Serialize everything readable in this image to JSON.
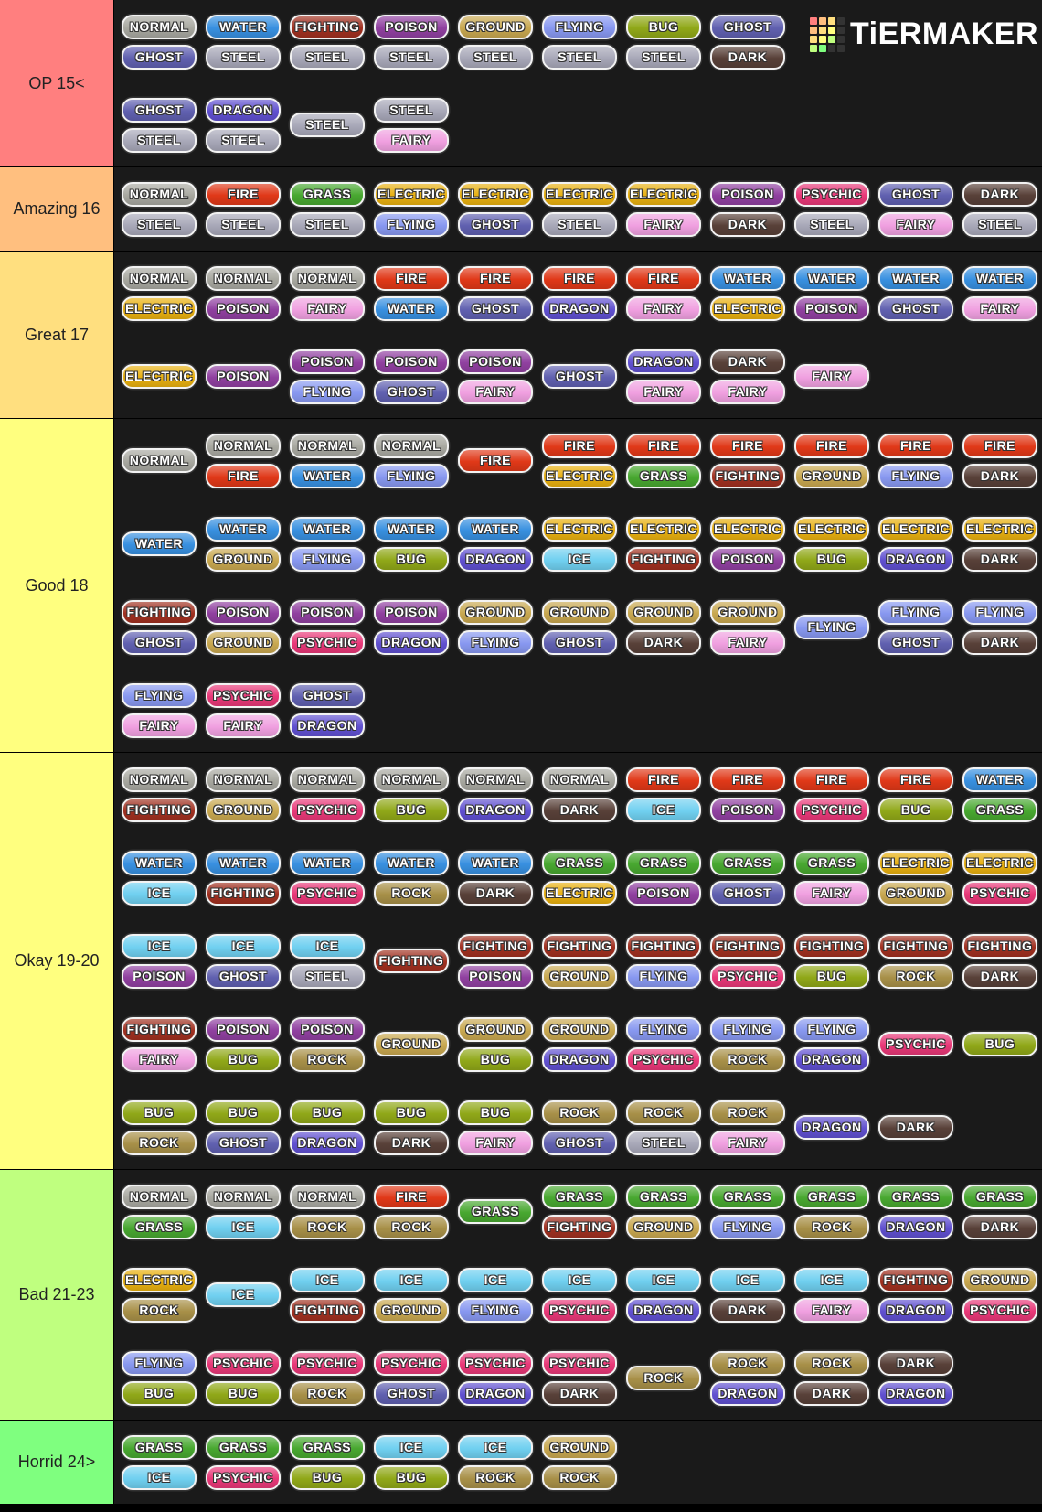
{
  "logo": "TiERMAKER",
  "type_colors": {
    "NORMAL": "#a8a8a0",
    "FIRE": "#e03818",
    "WATER": "#3890e0",
    "GRASS": "#48a830",
    "ELECTRIC": "#e8b010",
    "ICE": "#70d0f0",
    "FIGHTING": "#a03020",
    "POISON": "#9040a0",
    "GROUND": "#c8a850",
    "FLYING": "#8898f0",
    "PSYCHIC": "#e83878",
    "BUG": "#90a818",
    "ROCK": "#a89048",
    "GHOST": "#6060b0",
    "DRAGON": "#6050d0",
    "DARK": "#584038",
    "STEEL": "#a8a8b8",
    "FAIRY": "#f0a0e0"
  },
  "tiers": [
    {
      "label": "OP 15<",
      "color": "#ff7f7f",
      "rows": [
        [
          [
            "NORMAL",
            "GHOST"
          ],
          [
            "WATER",
            "STEEL"
          ],
          [
            "FIGHTING",
            "STEEL"
          ],
          [
            "POISON",
            "STEEL"
          ],
          [
            "GROUND",
            "STEEL"
          ],
          [
            "FLYING",
            "STEEL"
          ],
          [
            "BUG",
            "STEEL"
          ],
          [
            "GHOST",
            "DARK"
          ]
        ],
        [
          [
            "GHOST",
            "STEEL"
          ],
          [
            "DRAGON",
            "STEEL"
          ],
          [
            "STEEL"
          ],
          [
            "STEEL",
            "FAIRY"
          ]
        ]
      ]
    },
    {
      "label": "Amazing 16",
      "color": "#ffbf7f",
      "rows": [
        [
          [
            "NORMAL",
            "STEEL"
          ],
          [
            "FIRE",
            "STEEL"
          ],
          [
            "GRASS",
            "STEEL"
          ],
          [
            "ELECTRIC",
            "FLYING"
          ],
          [
            "ELECTRIC",
            "GHOST"
          ],
          [
            "ELECTRIC",
            "STEEL"
          ],
          [
            "ELECTRIC",
            "FAIRY"
          ],
          [
            "POISON",
            "DARK"
          ],
          [
            "PSYCHIC",
            "STEEL"
          ],
          [
            "GHOST",
            "FAIRY"
          ],
          [
            "DARK",
            "STEEL"
          ]
        ]
      ]
    },
    {
      "label": "Great 17",
      "color": "#ffdf7f",
      "rows": [
        [
          [
            "NORMAL",
            "ELECTRIC"
          ],
          [
            "NORMAL",
            "POISON"
          ],
          [
            "NORMAL",
            "FAIRY"
          ],
          [
            "FIRE",
            "WATER"
          ],
          [
            "FIRE",
            "GHOST"
          ],
          [
            "FIRE",
            "DRAGON"
          ],
          [
            "FIRE",
            "FAIRY"
          ],
          [
            "WATER",
            "ELECTRIC"
          ],
          [
            "WATER",
            "POISON"
          ],
          [
            "WATER",
            "GHOST"
          ],
          [
            "WATER",
            "FAIRY"
          ]
        ],
        [
          [
            "ELECTRIC"
          ],
          [
            "POISON"
          ],
          [
            "POISON",
            "FLYING"
          ],
          [
            "POISON",
            "GHOST"
          ],
          [
            "POISON",
            "FAIRY"
          ],
          [
            "GHOST"
          ],
          [
            "DRAGON",
            "FAIRY"
          ],
          [
            "DARK",
            "FAIRY"
          ],
          [
            "FAIRY"
          ]
        ]
      ]
    },
    {
      "label": "Good 18",
      "color": "#ffff7f",
      "rows": [
        [
          [
            "NORMAL"
          ],
          [
            "NORMAL",
            "FIRE"
          ],
          [
            "NORMAL",
            "WATER"
          ],
          [
            "NORMAL",
            "FLYING"
          ],
          [
            "FIRE"
          ],
          [
            "FIRE",
            "ELECTRIC"
          ],
          [
            "FIRE",
            "GRASS"
          ],
          [
            "FIRE",
            "FIGHTING"
          ],
          [
            "FIRE",
            "GROUND"
          ],
          [
            "FIRE",
            "FLYING"
          ],
          [
            "FIRE",
            "DARK"
          ]
        ],
        [
          [
            "WATER"
          ],
          [
            "WATER",
            "GROUND"
          ],
          [
            "WATER",
            "FLYING"
          ],
          [
            "WATER",
            "BUG"
          ],
          [
            "WATER",
            "DRAGON"
          ],
          [
            "ELECTRIC",
            "ICE"
          ],
          [
            "ELECTRIC",
            "FIGHTING"
          ],
          [
            "ELECTRIC",
            "POISON"
          ],
          [
            "ELECTRIC",
            "BUG"
          ],
          [
            "ELECTRIC",
            "DRAGON"
          ],
          [
            "ELECTRIC",
            "DARK"
          ]
        ],
        [
          [
            "FIGHTING",
            "GHOST"
          ],
          [
            "POISON",
            "GROUND"
          ],
          [
            "POISON",
            "PSYCHIC"
          ],
          [
            "POISON",
            "DRAGON"
          ],
          [
            "GROUND",
            "FLYING"
          ],
          [
            "GROUND",
            "GHOST"
          ],
          [
            "GROUND",
            "DARK"
          ],
          [
            "GROUND",
            "FAIRY"
          ],
          [
            "FLYING"
          ],
          [
            "FLYING",
            "GHOST"
          ],
          [
            "FLYING",
            "DARK"
          ]
        ],
        [
          [
            "FLYING",
            "FAIRY"
          ],
          [
            "PSYCHIC",
            "FAIRY"
          ],
          [
            "GHOST",
            "DRAGON"
          ]
        ]
      ]
    },
    {
      "label": "Okay 19-20",
      "color": "#ffff7f",
      "rows": [
        [
          [
            "NORMAL",
            "FIGHTING"
          ],
          [
            "NORMAL",
            "GROUND"
          ],
          [
            "NORMAL",
            "PSYCHIC"
          ],
          [
            "NORMAL",
            "BUG"
          ],
          [
            "NORMAL",
            "DRAGON"
          ],
          [
            "NORMAL",
            "DARK"
          ],
          [
            "FIRE",
            "ICE"
          ],
          [
            "FIRE",
            "POISON"
          ],
          [
            "FIRE",
            "PSYCHIC"
          ],
          [
            "FIRE",
            "BUG"
          ],
          [
            "WATER",
            "GRASS"
          ]
        ],
        [
          [
            "WATER",
            "ICE"
          ],
          [
            "WATER",
            "FIGHTING"
          ],
          [
            "WATER",
            "PSYCHIC"
          ],
          [
            "WATER",
            "ROCK"
          ],
          [
            "WATER",
            "DARK"
          ],
          [
            "GRASS",
            "ELECTRIC"
          ],
          [
            "GRASS",
            "POISON"
          ],
          [
            "GRASS",
            "GHOST"
          ],
          [
            "GRASS",
            "FAIRY"
          ],
          [
            "ELECTRIC",
            "GROUND"
          ],
          [
            "ELECTRIC",
            "PSYCHIC"
          ]
        ],
        [
          [
            "ICE",
            "POISON"
          ],
          [
            "ICE",
            "GHOST"
          ],
          [
            "ICE",
            "STEEL"
          ],
          [
            "FIGHTING"
          ],
          [
            "FIGHTING",
            "POISON"
          ],
          [
            "FIGHTING",
            "GROUND"
          ],
          [
            "FIGHTING",
            "FLYING"
          ],
          [
            "FIGHTING",
            "PSYCHIC"
          ],
          [
            "FIGHTING",
            "BUG"
          ],
          [
            "FIGHTING",
            "ROCK"
          ],
          [
            "FIGHTING",
            "DARK"
          ]
        ],
        [
          [
            "FIGHTING",
            "FAIRY"
          ],
          [
            "POISON",
            "BUG"
          ],
          [
            "POISON",
            "ROCK"
          ],
          [
            "GROUND"
          ],
          [
            "GROUND",
            "BUG"
          ],
          [
            "GROUND",
            "DRAGON"
          ],
          [
            "FLYING",
            "PSYCHIC"
          ],
          [
            "FLYING",
            "ROCK"
          ],
          [
            "FLYING",
            "DRAGON"
          ],
          [
            "PSYCHIC"
          ],
          [
            "BUG"
          ]
        ],
        [
          [
            "BUG",
            "ROCK"
          ],
          [
            "BUG",
            "GHOST"
          ],
          [
            "BUG",
            "DRAGON"
          ],
          [
            "BUG",
            "DARK"
          ],
          [
            "BUG",
            "FAIRY"
          ],
          [
            "ROCK",
            "GHOST"
          ],
          [
            "ROCK",
            "STEEL"
          ],
          [
            "ROCK",
            "FAIRY"
          ],
          [
            "DRAGON"
          ],
          [
            "DARK"
          ]
        ]
      ]
    },
    {
      "label": "Bad 21-23",
      "color": "#bfff7f",
      "rows": [
        [
          [
            "NORMAL",
            "GRASS"
          ],
          [
            "NORMAL",
            "ICE"
          ],
          [
            "NORMAL",
            "ROCK"
          ],
          [
            "FIRE",
            "ROCK"
          ],
          [
            "GRASS"
          ],
          [
            "GRASS",
            "FIGHTING"
          ],
          [
            "GRASS",
            "GROUND"
          ],
          [
            "GRASS",
            "FLYING"
          ],
          [
            "GRASS",
            "ROCK"
          ],
          [
            "GRASS",
            "DRAGON"
          ],
          [
            "GRASS",
            "DARK"
          ]
        ],
        [
          [
            "ELECTRIC",
            "ROCK"
          ],
          [
            "ICE"
          ],
          [
            "ICE",
            "FIGHTING"
          ],
          [
            "ICE",
            "GROUND"
          ],
          [
            "ICE",
            "FLYING"
          ],
          [
            "ICE",
            "PSYCHIC"
          ],
          [
            "ICE",
            "DRAGON"
          ],
          [
            "ICE",
            "DARK"
          ],
          [
            "ICE",
            "FAIRY"
          ],
          [
            "FIGHTING",
            "DRAGON"
          ],
          [
            "GROUND",
            "PSYCHIC"
          ]
        ],
        [
          [
            "FLYING",
            "BUG"
          ],
          [
            "PSYCHIC",
            "BUG"
          ],
          [
            "PSYCHIC",
            "ROCK"
          ],
          [
            "PSYCHIC",
            "GHOST"
          ],
          [
            "PSYCHIC",
            "DRAGON"
          ],
          [
            "PSYCHIC",
            "DARK"
          ],
          [
            "ROCK"
          ],
          [
            "ROCK",
            "DRAGON"
          ],
          [
            "ROCK",
            "DARK"
          ],
          [
            "DARK",
            "DRAGON"
          ]
        ]
      ]
    },
    {
      "label": "Horrid 24>",
      "color": "#7fff7f",
      "rows": [
        [
          [
            "GRASS",
            "ICE"
          ],
          [
            "GRASS",
            "PSYCHIC"
          ],
          [
            "GRASS",
            "BUG"
          ],
          [
            "ICE",
            "BUG"
          ],
          [
            "ICE",
            "ROCK"
          ],
          [
            "GROUND",
            "ROCK"
          ]
        ]
      ]
    }
  ]
}
